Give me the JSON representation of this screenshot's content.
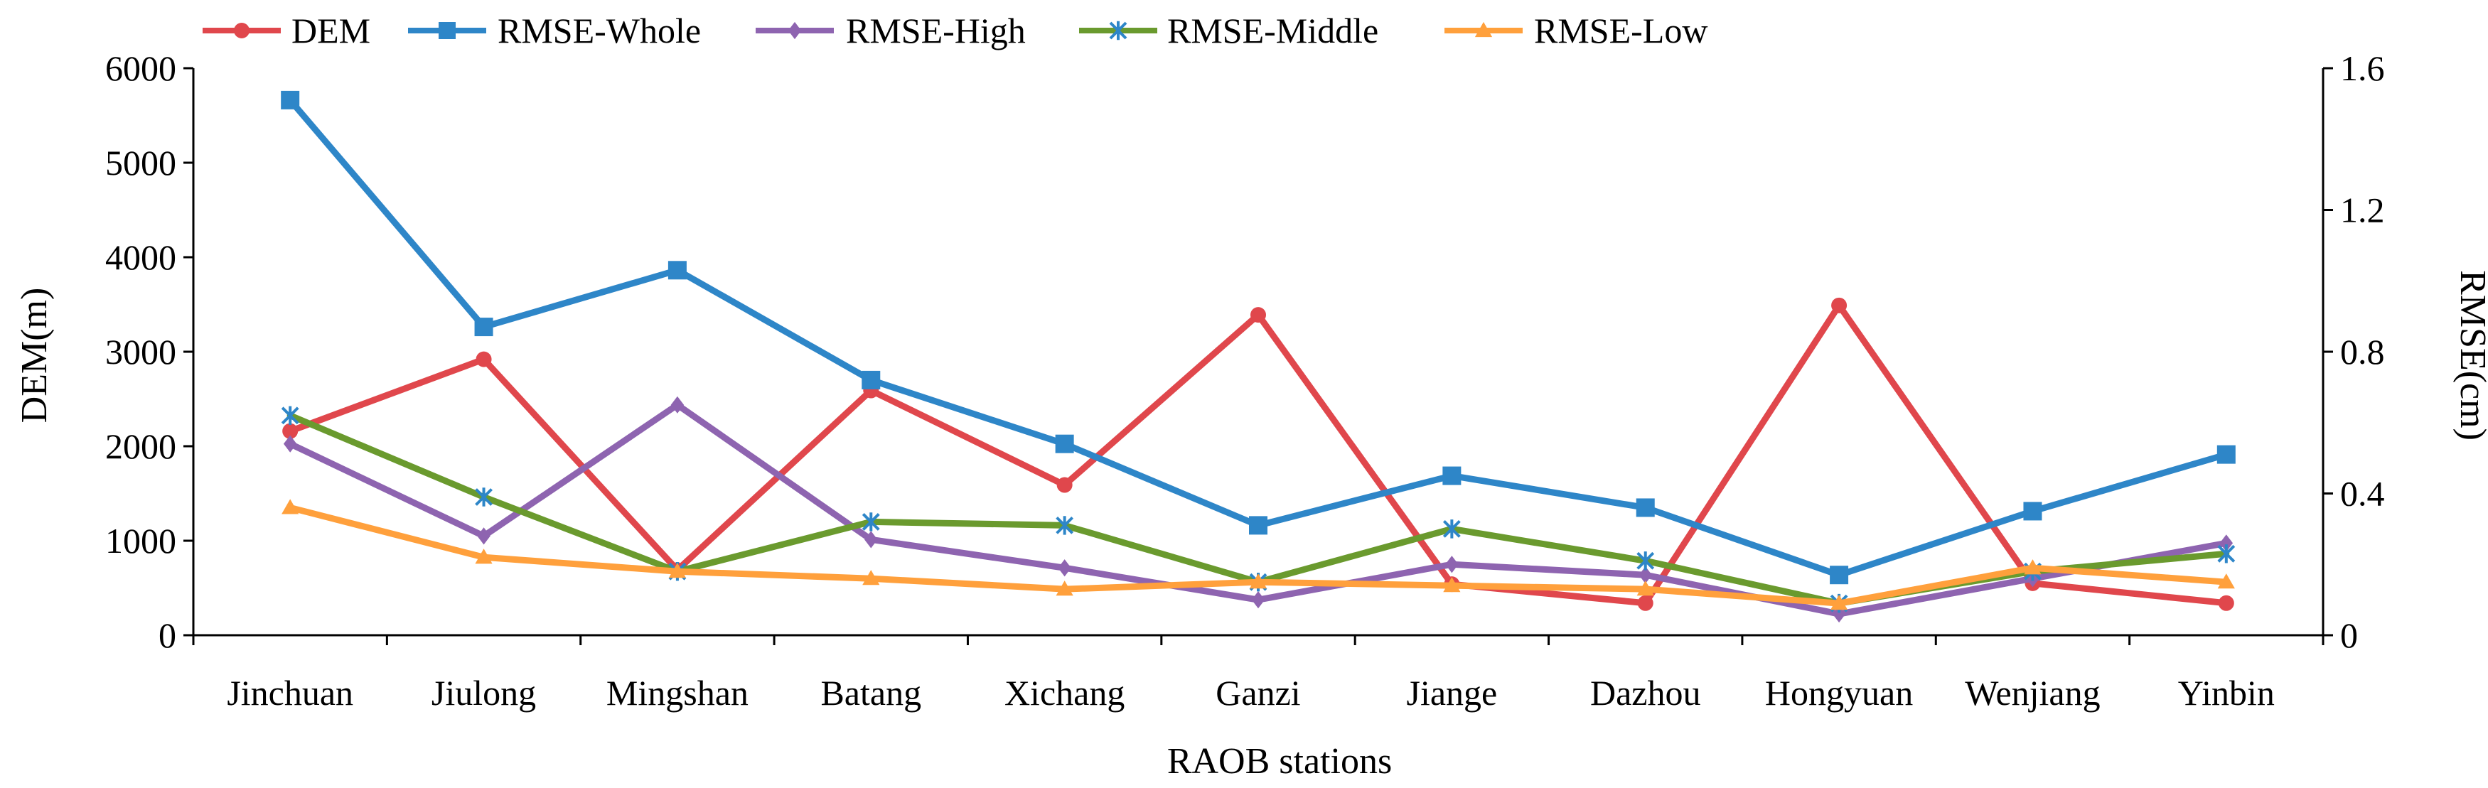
{
  "chart_data": {
    "type": "line",
    "xlabel": "RAOB stations",
    "ylabel_left": "DEM(m)",
    "ylabel_right": "RMSE(cm)",
    "ylim_left": [
      0,
      6000
    ],
    "ylim_right": [
      0,
      1.6
    ],
    "yticks_left": [
      "0",
      "1000",
      "2000",
      "3000",
      "4000",
      "5000",
      "6000"
    ],
    "yticks_right": [
      "0",
      "0.4",
      "0.8",
      "1.2",
      "1.6"
    ],
    "categories": [
      "Jinchuan",
      "Jiulong",
      "Mingshan",
      "Batang",
      "Xichang",
      "Ganzi",
      "Jiange",
      "Dazhou",
      "Hongyuan",
      "Wenjiang",
      "Yinbin"
    ],
    "legend_position": "top",
    "grid": false,
    "series": [
      {
        "name": "DEM",
        "axis": "left",
        "color": "#E0474C",
        "marker": "circle",
        "values": [
          2160,
          2920,
          690,
          2590,
          1590,
          3390,
          540,
          340,
          3490,
          550,
          340
        ]
      },
      {
        "name": "RMSE-Whole",
        "axis": "right",
        "color": "#2E86C8",
        "marker": "square",
        "values": [
          1.51,
          0.87,
          1.03,
          0.72,
          0.54,
          0.31,
          0.45,
          0.36,
          0.17,
          0.35,
          0.51
        ]
      },
      {
        "name": "RMSE-High",
        "axis": "right",
        "color": "#8E64B0",
        "marker": "diamond",
        "values": [
          0.54,
          0.28,
          0.65,
          0.27,
          0.19,
          0.1,
          0.2,
          0.17,
          0.06,
          0.16,
          0.26
        ]
      },
      {
        "name": "RMSE-Middle",
        "axis": "right",
        "color": "#6A9A2E",
        "marker": "star",
        "values": [
          0.62,
          0.39,
          0.18,
          0.32,
          0.31,
          0.15,
          0.3,
          0.21,
          0.09,
          0.18,
          0.23
        ]
      },
      {
        "name": "RMSE-Low",
        "axis": "right",
        "color": "#FFA03C",
        "marker": "triangle",
        "values": [
          0.36,
          0.22,
          0.18,
          0.16,
          0.13,
          0.15,
          0.14,
          0.13,
          0.09,
          0.19,
          0.15
        ]
      }
    ]
  }
}
